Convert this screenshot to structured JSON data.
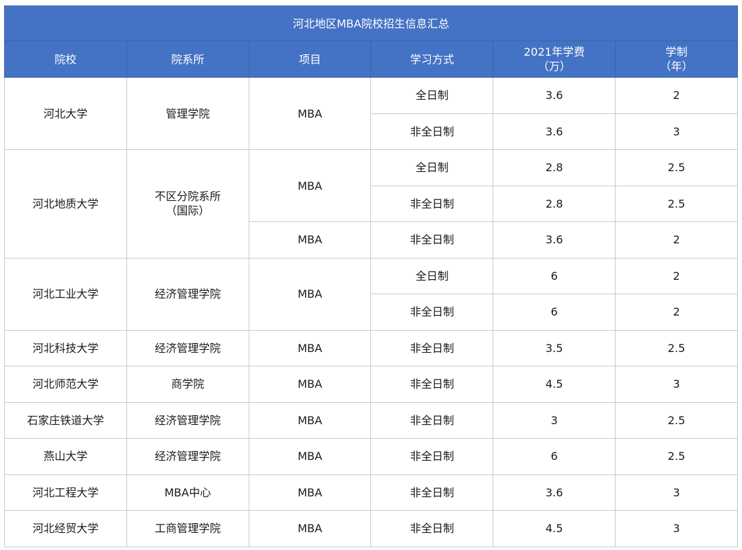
{
  "title": "河北地区MBA院校招生信息汇总",
  "headers": [
    "院校",
    "院系所",
    "项目",
    "学习方式",
    "2021年学费",
    "（万）",
    "学制",
    "（年）"
  ],
  "rows": [
    {
      "school": "河北大学",
      "dept": "管理学院",
      "program": "MBA",
      "mode": "全日制",
      "fee": "3.6",
      "years": "2"
    },
    {
      "mode": "非全日制",
      "fee": "3.6",
      "years": "3"
    },
    {
      "school": "河北地质大学",
      "dept": "不区分院系所",
      "dept2": "（国际）",
      "program": "MBA",
      "mode": "全日制",
      "fee": "2.8",
      "years": "2.5"
    },
    {
      "mode": "非全日制",
      "fee": "2.8",
      "years": "2.5"
    },
    {
      "program": "MBA",
      "mode": "非全日制",
      "fee": "3.6",
      "years": "2"
    },
    {
      "school": "河北工业大学",
      "dept": "经济管理学院",
      "program": "MBA",
      "mode": "全日制",
      "fee": "6",
      "years": "2"
    },
    {
      "mode": "非全日制",
      "fee": "6",
      "years": "2"
    },
    {
      "school": "河北科技大学",
      "dept": "经济管理学院",
      "program": "MBA",
      "mode": "非全日制",
      "fee": "3.5",
      "years": "2.5"
    },
    {
      "school": "河北师范大学",
      "dept": "商学院",
      "program": "MBA",
      "mode": "非全日制",
      "fee": "4.5",
      "years": "3"
    },
    {
      "school": "石家庄铁道大学",
      "dept": "经济管理学院",
      "program": "MBA",
      "mode": "非全日制",
      "fee": "3",
      "years": "2.5"
    },
    {
      "school": "燕山大学",
      "dept": "经济管理学院",
      "program": "MBA",
      "mode": "非全日制",
      "fee": "6",
      "years": "2.5"
    },
    {
      "school": "河北工程大学",
      "dept": "MBA中心",
      "program": "MBA",
      "mode": "非全日制",
      "fee": "3.6",
      "years": "3"
    },
    {
      "school": "河北经贸大学",
      "dept": "工商管理学院",
      "program": "MBA",
      "mode": "非全日制",
      "fee": "4.5",
      "years": "3"
    }
  ],
  "colors": {
    "header": "#4472c4",
    "grid": "#c9c9c9"
  }
}
